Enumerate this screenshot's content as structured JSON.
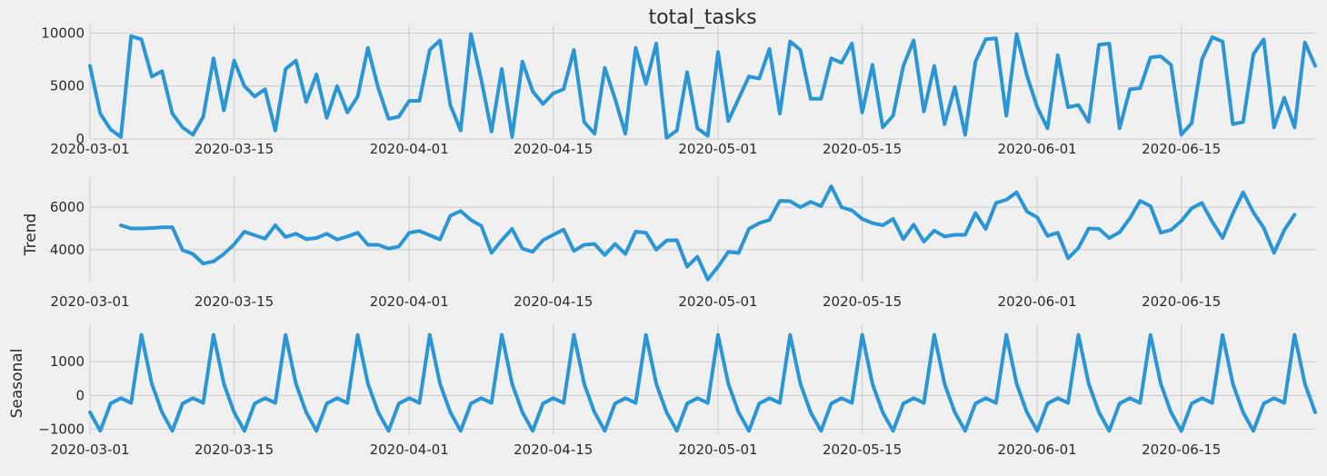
{
  "chart_data": [
    {
      "type": "line",
      "title": "total_tasks",
      "ylabel": "",
      "ylim": [
        0,
        10200
      ],
      "yticks": [
        0,
        5000,
        10000
      ],
      "yticklabels": [
        "0",
        "5000",
        "10000"
      ],
      "xlim": [
        "2020-03-01",
        "2020-06-28"
      ],
      "xticks": [
        "2020-03-01",
        "2020-03-15",
        "2020-04-01",
        "2020-04-15",
        "2020-05-01",
        "2020-05-15",
        "2020-06-01",
        "2020-06-15"
      ],
      "grid": true,
      "color": "#2a96d6",
      "series": [
        {
          "start": "2020-03-01",
          "values": [
            6900,
            2400,
            900,
            200,
            9700,
            9400,
            5900,
            6400,
            2400,
            1100,
            400,
            2100,
            7600,
            2700,
            7400,
            5000,
            4000,
            4700,
            800,
            6600,
            7400,
            3500,
            6100,
            2000,
            5000,
            2500,
            4000,
            8600,
            4800,
            1900,
            2100,
            3600,
            3600,
            8400,
            9300,
            3200,
            800,
            9900,
            5600,
            700,
            6600,
            200,
            7300,
            4500,
            3300,
            4300,
            4700,
            8400,
            1600,
            500,
            6700,
            3800,
            500,
            8600,
            5200,
            9000,
            100,
            800,
            6300,
            1000,
            300,
            8200,
            1700,
            3800,
            5900,
            5700,
            8500,
            2400,
            9200,
            8400,
            3800,
            3800,
            7600,
            7200,
            9000,
            2500,
            7000,
            1100,
            2200,
            6900,
            9300,
            2600,
            6900,
            1400,
            4900,
            400,
            7300,
            9400,
            9500,
            2200,
            9900,
            6000,
            3000,
            1000,
            7900,
            3000,
            3200,
            1600,
            8900,
            9000,
            1000,
            4700,
            4800,
            7700,
            7800,
            7000,
            400,
            1500,
            7500,
            9600,
            9200,
            1400,
            1600,
            8000,
            9400,
            1100,
            3900,
            1100,
            9100,
            6900
          ]
        }
      ]
    },
    {
      "type": "line",
      "title": "",
      "ylabel": "Trend",
      "ylim": [
        2500,
        7200
      ],
      "yticks": [
        4000,
        6000
      ],
      "yticklabels": [
        "4000",
        "6000"
      ],
      "xlim": [
        "2020-03-01",
        "2020-06-28"
      ],
      "xticks": [
        "2020-03-01",
        "2020-03-15",
        "2020-04-01",
        "2020-04-15",
        "2020-05-01",
        "2020-05-15",
        "2020-06-01",
        "2020-06-15"
      ],
      "grid": true,
      "color": "#2a96d6",
      "series": [
        {
          "start": "2020-03-04",
          "values": [
            5150,
            5000,
            5000,
            5020,
            5050,
            5060,
            3980,
            3800,
            3350,
            3450,
            3800,
            4250,
            4850,
            4680,
            4520,
            5150,
            4600,
            4750,
            4500,
            4550,
            4750,
            4480,
            4620,
            4800,
            4230,
            4230,
            4050,
            4150,
            4800,
            4880,
            4680,
            4480,
            5600,
            5820,
            5400,
            5120,
            3850,
            4450,
            4980,
            4050,
            3900,
            4450,
            4700,
            4950,
            3950,
            4230,
            4270,
            3750,
            4270,
            3800,
            4850,
            4800,
            4000,
            4430,
            4450,
            3200,
            3670,
            2600,
            3200,
            3900,
            3850,
            4980,
            5250,
            5400,
            6300,
            6280,
            6000,
            6250,
            6050,
            6980,
            6000,
            5850,
            5450,
            5250,
            5150,
            5450,
            4500,
            5180,
            4380,
            4900,
            4620,
            4700,
            4700,
            5720,
            4980,
            6200,
            6350,
            6700,
            5800,
            5520,
            4650,
            4800,
            3600,
            4080,
            5000,
            4980,
            4550,
            4820,
            5480,
            6300,
            6050,
            4800,
            4930,
            5350,
            5950,
            6200,
            5320,
            4550,
            5700,
            6700,
            5750,
            5030,
            3850,
            4920,
            5650
          ]
        }
      ]
    },
    {
      "type": "line",
      "title": "",
      "ylabel": "Seasonal",
      "ylim": [
        -1150,
        1950
      ],
      "yticks": [
        -1000,
        0,
        1000
      ],
      "yticklabels": [
        "−1000",
        "0",
        "1000"
      ],
      "xlim": [
        "2020-03-01",
        "2020-06-28"
      ],
      "xticks": [
        "2020-03-01",
        "2020-03-15",
        "2020-04-01",
        "2020-04-15",
        "2020-05-01",
        "2020-05-15",
        "2020-06-01",
        "2020-06-15"
      ],
      "grid": true,
      "color": "#2a96d6",
      "series": [
        {
          "start": "2020-03-01",
          "period_values": [
            -500,
            -1050,
            -240,
            -80,
            -220,
            1800,
            350
          ],
          "periods": 17.28
        }
      ]
    }
  ]
}
